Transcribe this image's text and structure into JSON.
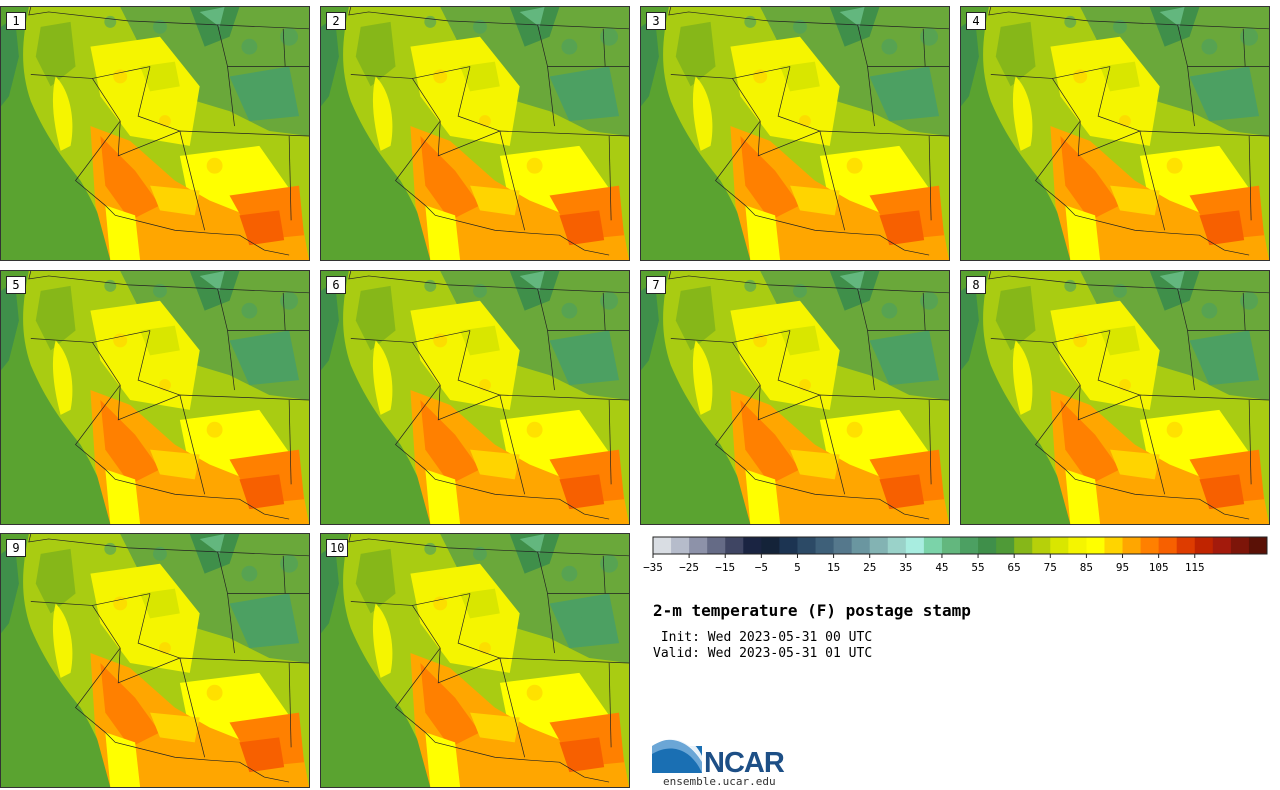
{
  "panels": [
    "1",
    "2",
    "3",
    "4",
    "5",
    "6",
    "7",
    "8",
    "9",
    "10"
  ],
  "colorbar": {
    "colors": [
      "#d9dde3",
      "#b6bccb",
      "#8d92a9",
      "#656b86",
      "#3f4563",
      "#1a2442",
      "#142339",
      "#1c3452",
      "#2c4a66",
      "#3e6079",
      "#55788c",
      "#6a96a0",
      "#83b3b3",
      "#9ad2c9",
      "#a8ede0",
      "#7bd3a9",
      "#63b77e",
      "#4ca062",
      "#3f8f4a",
      "#4f9a37",
      "#86b719",
      "#b6d00a",
      "#d9e600",
      "#f5f500",
      "#ffff00",
      "#ffd400",
      "#ffa600",
      "#ff8000",
      "#f76000",
      "#de3c00",
      "#c02400",
      "#a31a0c",
      "#7d1509",
      "#5a1106"
    ],
    "tick_labels": [
      "−35",
      "−25",
      "−15",
      "−5",
      "5",
      "15",
      "25",
      "35",
      "45",
      "55",
      "65",
      "75",
      "85",
      "95",
      "105",
      "115"
    ]
  },
  "title": "2-m temperature (F) postage stamp",
  "init": " Init: Wed 2023-05-31 00 UTC",
  "valid": "Valid: Wed 2023-05-31 01 UTC",
  "logo": {
    "text": "NCAR",
    "url": "ensemble.ucar.edu"
  }
}
